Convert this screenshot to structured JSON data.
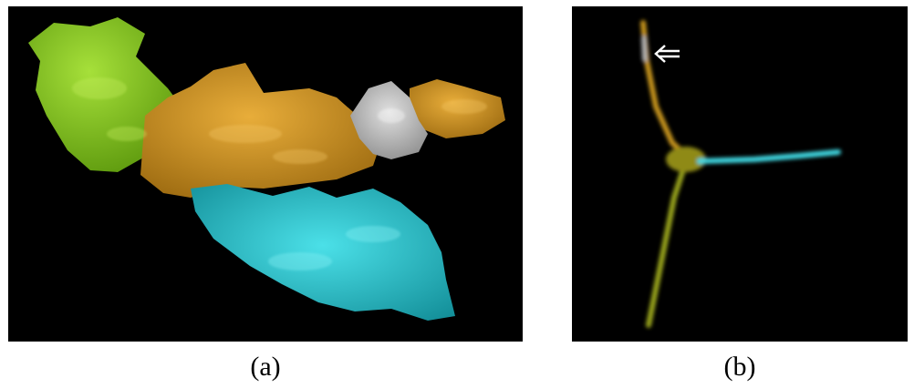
{
  "figure": {
    "panels": [
      {
        "id": "a",
        "caption": "(a)",
        "regions": [
          {
            "name": "green-cluster",
            "color": "#7cc417"
          },
          {
            "name": "orange-cluster",
            "color": "#d19623"
          },
          {
            "name": "gray-cluster",
            "color": "#a8a8a8"
          },
          {
            "name": "teal-cluster",
            "color": "#25c4cc"
          }
        ]
      },
      {
        "id": "b",
        "caption": "(b)",
        "branches": [
          {
            "name": "upper-branch",
            "color": "#c9961f"
          },
          {
            "name": "lower-branch",
            "color": "#9aa51c"
          },
          {
            "name": "right-branch",
            "color": "#3fd8e2"
          }
        ],
        "annotation_icon": "double-arrow-left-icon"
      }
    ]
  }
}
